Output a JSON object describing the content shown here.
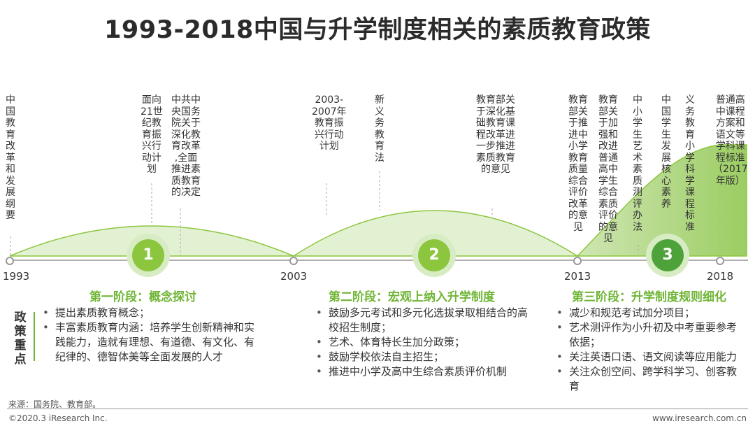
{
  "title": "1993-2018中国与升学制度相关的素质教育政策",
  "years": [
    "1993",
    "2003",
    "2013",
    "2018"
  ],
  "stages": [
    {
      "number": "1",
      "title": "第一阶段：概念探讨",
      "policies": [
        "提出素质教育概念；",
        "丰富素质教育内涵：培养学生创新精神和实践能力，造就有理想、有道德、有文化、有纪律的、德智体美等全面发展的人才"
      ]
    },
    {
      "number": "2",
      "title": "第二阶段：宏观上纳入升学制度",
      "policies": [
        "鼓励多元考试和多元化选拔录取相结合的高校招生制度；",
        "艺术、体育特长生加分政策；",
        "鼓励学校依法自主招生；",
        "推进中小学及高中生综合素质评价机制"
      ]
    },
    {
      "number": "3",
      "title": "第三阶段：升学制度规则细化",
      "policies": [
        "减少和规范考试加分项目；",
        "艺术测评作为小升初及中考重要参考依据；",
        "关注英语口语、语文阅读等应用能力",
        "关注众创空间、跨学科学习、创客教育"
      ]
    }
  ],
  "events": [
    {
      "text": "中国教育改革和发展纲要"
    },
    {
      "text": "面向21世纪教育振兴行动计划"
    },
    {
      "text": "中共中央国务院关于深化教育改革,全面推进素质教育的决定"
    },
    {
      "text": "2003-2007年教育振兴行动计划"
    },
    {
      "text": "新义务教育法"
    },
    {
      "text": "教育部关于深化基础教育课程改革进一步推进素质教育的意见"
    },
    {
      "text": "教育部关于推进中小学教育质量综合评价改革的意见"
    },
    {
      "text": "教育部关于加强和改进普通高中学生综合素质评价的意见"
    },
    {
      "text": "中小学生艺术素质测评办法"
    },
    {
      "text": "中国学生发展核心素养"
    },
    {
      "text": "义务教育小学科学课程标准"
    },
    {
      "text": "普通高中课程方案和语文等学科课程标准（2017年版）"
    }
  ],
  "side_label": "政策重点",
  "source": "来源：国务院、教育部。",
  "copyright": "©2020.3 iResearch Inc.",
  "website": "www.iresearch.com.cn",
  "colors": {
    "accent_green": "#6fb535",
    "badge_outer": "#d8ecc4",
    "badge_inner": "#8cc63f",
    "hill_fill": "#e3f1d3",
    "hill_stroke": "#8cc63f",
    "axis": "#b0b0b0"
  }
}
